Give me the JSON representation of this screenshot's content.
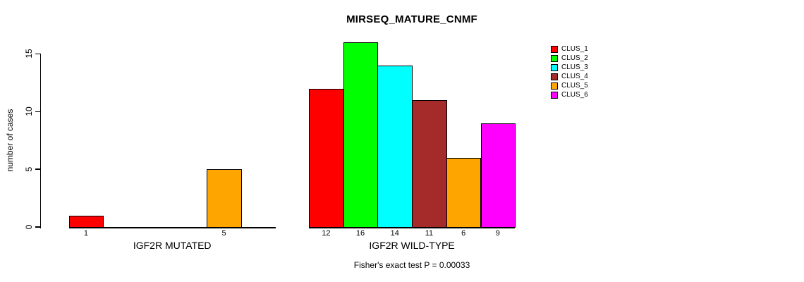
{
  "chart_data": {
    "type": "bar",
    "title": "MIRSEQ_MATURE_CNMF",
    "ylabel": "number of cases",
    "ylim": [
      0,
      15
    ],
    "yticks": [
      0,
      5,
      10,
      15
    ],
    "grid": false,
    "legend_position": "right",
    "series_legend": [
      {
        "name": "CLUS_1",
        "color": "#FF0000"
      },
      {
        "name": "CLUS_2",
        "color": "#00FF00"
      },
      {
        "name": "CLUS_3",
        "color": "#00FFFF"
      },
      {
        "name": "CLUS_4",
        "color": "#A52A2A"
      },
      {
        "name": "CLUS_5",
        "color": "#FFA500"
      },
      {
        "name": "CLUS_6",
        "color": "#FF00FF"
      }
    ],
    "groups": [
      {
        "label": "IGF2R MUTATED",
        "values": [
          1,
          0,
          0,
          0,
          5,
          0
        ],
        "bar_labels": [
          "1",
          "",
          "",
          "",
          "5",
          ""
        ]
      },
      {
        "label": "IGF2R WILD-TYPE",
        "values": [
          12,
          16,
          14,
          11,
          6,
          9
        ],
        "bar_labels": [
          "12",
          "16",
          "14",
          "11",
          "6",
          "9"
        ]
      }
    ],
    "footnote": "Fisher's exact test P = 0.00033"
  }
}
